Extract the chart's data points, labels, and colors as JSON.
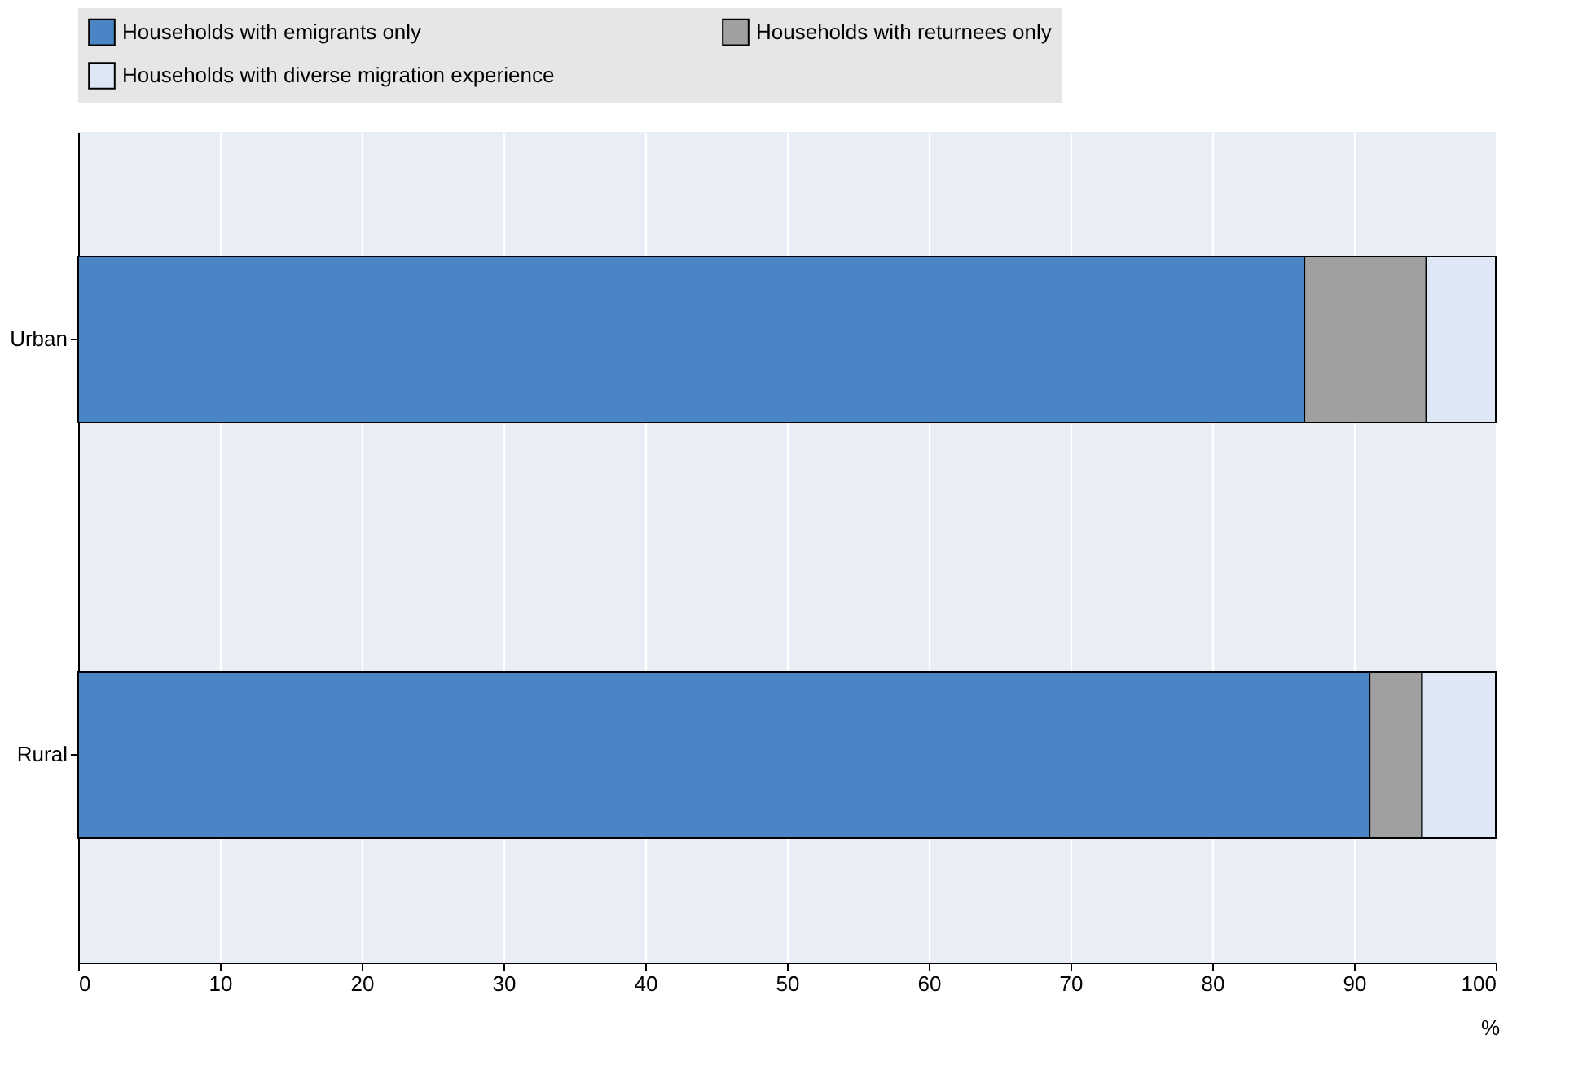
{
  "chart_data": {
    "type": "bar",
    "orientation": "horizontal",
    "stacked": true,
    "categories": [
      "Urban",
      "Rural"
    ],
    "series": [
      {
        "name": "Households with emigrants only",
        "color": "#4a86c5",
        "values": [
          86.5,
          91.1
        ]
      },
      {
        "name": "Households with returnees only",
        "color": "#a0a0a0",
        "values": [
          8.6,
          3.7
        ]
      },
      {
        "name": "Households with diverse migration experience",
        "color": "#dde7f6",
        "values": [
          4.9,
          5.2
        ]
      }
    ],
    "xlim": [
      0,
      100
    ],
    "xticks": [
      0,
      10,
      20,
      30,
      40,
      50,
      60,
      70,
      80,
      90,
      100
    ],
    "xlabel": "%",
    "grid": "x",
    "legend": "top"
  }
}
